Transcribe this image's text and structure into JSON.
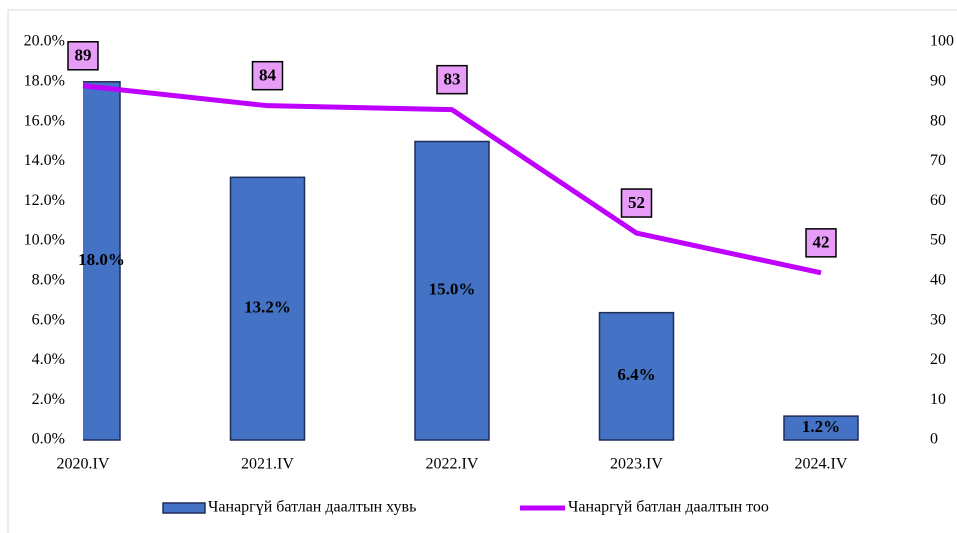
{
  "chart_data": {
    "type": "bar_line",
    "categories": [
      "2020.IV",
      "2021.IV",
      "2022.IV",
      "2023.IV",
      "2024.IV"
    ],
    "series": [
      {
        "name": "Чанаргүй батлан даалтын хувь",
        "type": "bar",
        "color": "#4472c4",
        "values": [
          18.0,
          13.2,
          15.0,
          6.4,
          1.2
        ],
        "value_labels": [
          "18.0%",
          "13.2%",
          "15.0%",
          "6.4%",
          "1.2%"
        ]
      },
      {
        "name": "Чанаргүй батлан даалтын тоо",
        "type": "line",
        "axis": "y2",
        "color": "#bf00ff",
        "values": [
          89,
          84,
          83,
          52,
          42
        ]
      }
    ],
    "ylim": [
      0,
      20
    ],
    "yticks": [
      {
        "value": 0,
        "label": "0.0%"
      },
      {
        "value": 2,
        "label": "2.0%"
      },
      {
        "value": 4,
        "label": "4.0%"
      },
      {
        "value": 6,
        "label": "6.0%"
      },
      {
        "value": 8,
        "label": "8.0%"
      },
      {
        "value": 10,
        "label": "10.0%"
      },
      {
        "value": 12,
        "label": "12.0%"
      },
      {
        "value": 14,
        "label": "14.0%"
      },
      {
        "value": 16,
        "label": "16.0%"
      },
      {
        "value": 18,
        "label": "18.0%"
      },
      {
        "value": 20,
        "label": "20.0%"
      }
    ],
    "y2lim": [
      0,
      100
    ],
    "y2ticks": [
      0,
      10,
      20,
      30,
      40,
      50,
      60,
      70,
      80,
      90,
      100
    ],
    "legend": "bottom"
  }
}
